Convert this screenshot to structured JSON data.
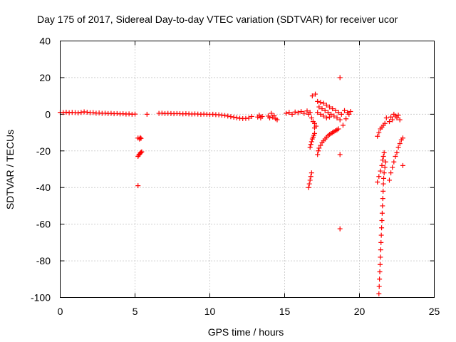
{
  "chart_data": {
    "type": "scatter",
    "title": "Day 175 of 2017, Sidereal Day-to-day VTEC variation (SDTVAR) for receiver ucor",
    "xlabel": "GPS time / hours",
    "ylabel": "SDTVAR / TECUs",
    "xlim": [
      0,
      25
    ],
    "ylim": [
      -100,
      40
    ],
    "x_ticks": [
      0,
      5,
      10,
      15,
      20,
      25
    ],
    "y_ticks": [
      40,
      20,
      0,
      -20,
      -40,
      -60,
      -80,
      -100
    ],
    "x_tick_labels": [
      "0",
      "5",
      "10",
      "15",
      "20",
      "25"
    ],
    "y_tick_labels": [
      "40",
      "20",
      "0",
      "-20",
      "-40",
      "-60",
      "-80",
      "-100"
    ],
    "grid": true,
    "marker": "+",
    "color": "#ff0000",
    "series": [
      {
        "name": "SDTVAR",
        "points": [
          [
            0.0,
            1.0
          ],
          [
            0.2,
            0.9
          ],
          [
            0.4,
            1.1
          ],
          [
            0.6,
            0.8
          ],
          [
            0.8,
            1.0
          ],
          [
            1.0,
            0.9
          ],
          [
            1.2,
            0.7
          ],
          [
            1.4,
            1.0
          ],
          [
            1.6,
            1.3
          ],
          [
            1.8,
            1.1
          ],
          [
            2.0,
            0.8
          ],
          [
            2.2,
            0.9
          ],
          [
            2.4,
            0.6
          ],
          [
            2.6,
            0.7
          ],
          [
            2.8,
            0.5
          ],
          [
            3.0,
            0.6
          ],
          [
            3.2,
            0.4
          ],
          [
            3.4,
            0.5
          ],
          [
            3.6,
            0.3
          ],
          [
            3.8,
            0.4
          ],
          [
            4.0,
            0.2
          ],
          [
            4.2,
            0.3
          ],
          [
            4.4,
            0.1
          ],
          [
            4.6,
            0.2
          ],
          [
            4.8,
            0.0
          ],
          [
            5.0,
            0.1
          ],
          [
            5.2,
            -13.0
          ],
          [
            5.3,
            -13.5
          ],
          [
            5.35,
            -12.8
          ],
          [
            5.4,
            -13.2
          ],
          [
            5.2,
            -23.0
          ],
          [
            5.25,
            -22.3
          ],
          [
            5.3,
            -21.8
          ],
          [
            5.35,
            -21.2
          ],
          [
            5.4,
            -20.8
          ],
          [
            5.45,
            -20.5
          ],
          [
            5.2,
            -39.0
          ],
          [
            5.8,
            0.0
          ],
          [
            6.6,
            0.5
          ],
          [
            6.8,
            0.6
          ],
          [
            7.0,
            0.4
          ],
          [
            7.2,
            0.5
          ],
          [
            7.4,
            0.4
          ],
          [
            7.6,
            0.3
          ],
          [
            7.8,
            0.4
          ],
          [
            8.0,
            0.3
          ],
          [
            8.2,
            0.2
          ],
          [
            8.4,
            0.3
          ],
          [
            8.6,
            0.2
          ],
          [
            8.8,
            0.1
          ],
          [
            9.0,
            0.2
          ],
          [
            9.2,
            0.1
          ],
          [
            9.4,
            0.0
          ],
          [
            9.6,
            0.1
          ],
          [
            9.8,
            0.0
          ],
          [
            10.0,
            -0.1
          ],
          [
            10.2,
            0.0
          ],
          [
            10.4,
            -0.2
          ],
          [
            10.6,
            -0.3
          ],
          [
            10.8,
            -0.5
          ],
          [
            11.0,
            -0.7
          ],
          [
            11.2,
            -1.0
          ],
          [
            11.4,
            -1.3
          ],
          [
            11.6,
            -1.6
          ],
          [
            11.8,
            -1.9
          ],
          [
            12.0,
            -2.2
          ],
          [
            12.2,
            -2.4
          ],
          [
            12.4,
            -2.3
          ],
          [
            12.6,
            -2.1
          ],
          [
            12.8,
            -1.2
          ],
          [
            13.2,
            -1.5
          ],
          [
            13.3,
            -0.5
          ],
          [
            13.4,
            -2.0
          ],
          [
            13.5,
            -1.2
          ],
          [
            13.9,
            -1.0
          ],
          [
            14.0,
            -2.0
          ],
          [
            14.1,
            0.5
          ],
          [
            14.2,
            -1.5
          ],
          [
            14.3,
            -0.8
          ],
          [
            14.4,
            -2.5
          ],
          [
            14.5,
            -3.0
          ],
          [
            15.1,
            0.5
          ],
          [
            15.3,
            1.0
          ],
          [
            15.5,
            0.0
          ],
          [
            15.7,
            1.2
          ],
          [
            15.9,
            0.8
          ],
          [
            16.1,
            1.5
          ],
          [
            16.3,
            0.5
          ],
          [
            16.5,
            1.8
          ],
          [
            16.6,
            0.0
          ],
          [
            16.7,
            1.0
          ],
          [
            16.6,
            -40.0
          ],
          [
            16.65,
            -38.0
          ],
          [
            16.7,
            -36.0
          ],
          [
            16.75,
            -34.0
          ],
          [
            16.8,
            -32.0
          ],
          [
            16.7,
            -18.0
          ],
          [
            16.75,
            -16.5
          ],
          [
            16.8,
            -15.0
          ],
          [
            16.85,
            -13.5
          ],
          [
            16.9,
            -12.5
          ],
          [
            16.95,
            -11.5
          ],
          [
            17.0,
            -10.5
          ],
          [
            16.8,
            -2.0
          ],
          [
            16.9,
            -4.0
          ],
          [
            17.0,
            -5.0
          ],
          [
            17.1,
            -6.5
          ],
          [
            17.0,
            -7.5
          ],
          [
            16.85,
            10.0
          ],
          [
            17.05,
            11.0
          ],
          [
            17.2,
            7.0
          ],
          [
            17.4,
            6.5
          ],
          [
            17.6,
            6.0
          ],
          [
            17.8,
            5.0
          ],
          [
            18.0,
            4.0
          ],
          [
            18.2,
            3.0
          ],
          [
            18.4,
            2.0
          ],
          [
            18.6,
            1.0
          ],
          [
            18.8,
            0.0
          ],
          [
            17.3,
            4.0
          ],
          [
            17.5,
            3.0
          ],
          [
            17.7,
            2.0
          ],
          [
            17.9,
            1.0
          ],
          [
            18.1,
            0.0
          ],
          [
            18.3,
            -1.0
          ],
          [
            18.5,
            -2.0
          ],
          [
            18.7,
            -3.0
          ],
          [
            17.2,
            1.0
          ],
          [
            17.4,
            0.0
          ],
          [
            17.6,
            -1.0
          ],
          [
            17.8,
            -2.0
          ],
          [
            18.0,
            -1.5
          ],
          [
            17.2,
            -22.0
          ],
          [
            17.25,
            -20.0
          ],
          [
            17.3,
            -18.5
          ],
          [
            17.4,
            -17.0
          ],
          [
            17.5,
            -15.5
          ],
          [
            17.6,
            -14.5
          ],
          [
            17.7,
            -13.5
          ],
          [
            17.8,
            -12.5
          ],
          [
            17.9,
            -11.8
          ],
          [
            18.0,
            -11.0
          ],
          [
            18.1,
            -10.5
          ],
          [
            18.2,
            -10.0
          ],
          [
            18.3,
            -9.5
          ],
          [
            18.4,
            -9.0
          ],
          [
            18.5,
            -8.5
          ],
          [
            18.6,
            -8.0
          ],
          [
            18.7,
            20.0
          ],
          [
            18.7,
            -22.0
          ],
          [
            18.7,
            -62.5
          ],
          [
            18.9,
            -6.0
          ],
          [
            19.0,
            2.0
          ],
          [
            19.1,
            -2.5
          ],
          [
            19.2,
            1.0
          ],
          [
            19.3,
            0.0
          ],
          [
            19.4,
            1.5
          ],
          [
            21.2,
            -37.0
          ],
          [
            21.3,
            -34.0
          ],
          [
            21.4,
            -31.0
          ],
          [
            21.5,
            -28.0
          ],
          [
            21.55,
            -25.0
          ],
          [
            21.6,
            -23.0
          ],
          [
            21.65,
            -21.0
          ],
          [
            21.3,
            -98.0
          ],
          [
            21.32,
            -94.0
          ],
          [
            21.34,
            -90.0
          ],
          [
            21.36,
            -86.0
          ],
          [
            21.38,
            -82.0
          ],
          [
            21.4,
            -78.0
          ],
          [
            21.42,
            -74.0
          ],
          [
            21.44,
            -70.0
          ],
          [
            21.46,
            -66.0
          ],
          [
            21.48,
            -62.0
          ],
          [
            21.5,
            -58.0
          ],
          [
            21.52,
            -54.0
          ],
          [
            21.54,
            -50.0
          ],
          [
            21.56,
            -46.0
          ],
          [
            21.58,
            -42.0
          ],
          [
            21.6,
            -38.0
          ],
          [
            21.62,
            -35.0
          ],
          [
            21.65,
            -32.0
          ],
          [
            21.7,
            -29.0
          ],
          [
            21.75,
            -26.0
          ],
          [
            21.2,
            -12.0
          ],
          [
            21.3,
            -10.0
          ],
          [
            21.4,
            -8.0
          ],
          [
            21.5,
            -7.0
          ],
          [
            21.6,
            -6.0
          ],
          [
            21.7,
            -5.0
          ],
          [
            21.8,
            -2.0
          ],
          [
            22.0,
            -4.0
          ],
          [
            22.1,
            -1.5
          ],
          [
            22.2,
            -3.0
          ],
          [
            22.3,
            0.0
          ],
          [
            22.4,
            -1.0
          ],
          [
            22.5,
            -2.0
          ],
          [
            22.6,
            -0.5
          ],
          [
            22.7,
            -3.0
          ],
          [
            22.0,
            -36.0
          ],
          [
            22.1,
            -32.0
          ],
          [
            22.2,
            -29.0
          ],
          [
            22.3,
            -26.0
          ],
          [
            22.4,
            -23.0
          ],
          [
            22.5,
            -21.0
          ],
          [
            22.6,
            -18.0
          ],
          [
            22.7,
            -16.0
          ],
          [
            22.8,
            -14.0
          ],
          [
            22.9,
            -13.0
          ],
          [
            22.9,
            -28.0
          ]
        ]
      }
    ]
  }
}
